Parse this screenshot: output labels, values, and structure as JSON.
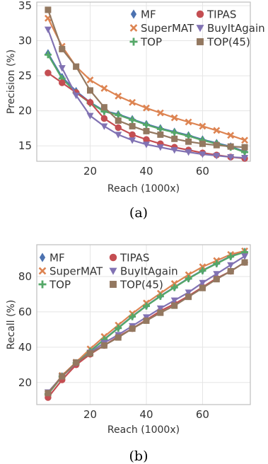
{
  "colors": {
    "MF": "#4c72b0",
    "SuperMAT": "#dd8452",
    "TOP": "#55a868",
    "TIPAS": "#c44e52",
    "BuyItAgain": "#8172b3",
    "TOP(45)": "#937860",
    "grid": "#e5e5e5",
    "axes": "#bfbfbf"
  },
  "chart_data": [
    {
      "type": "line",
      "xlabel": "Reach (1000x)",
      "ylabel": "Precision (%)",
      "caption": "(a)",
      "xlim": [
        1,
        77
      ],
      "ylim": [
        12.8,
        35.5
      ],
      "xticks": [
        20,
        40,
        60
      ],
      "yticks": [
        15,
        20,
        25,
        30,
        35
      ],
      "grid": true,
      "legend_position": "top-right",
      "x": [
        5,
        10,
        15,
        20,
        25,
        30,
        35,
        40,
        45,
        50,
        55,
        60,
        65,
        70,
        75
      ],
      "series": [
        {
          "name": "MF",
          "marker": "diamond",
          "values": [
            28.2,
            24.8,
            22.8,
            21.2,
            20.0,
            19.5,
            18.8,
            18.1,
            17.5,
            17.0,
            16.5,
            15.9,
            15.4,
            14.9,
            14.2
          ]
        },
        {
          "name": "SuperMAT",
          "marker": "x",
          "values": [
            33.2,
            29.2,
            26.3,
            24.4,
            23.2,
            22.1,
            21.2,
            20.4,
            19.7,
            19.0,
            18.4,
            17.8,
            17.2,
            16.5,
            15.8
          ]
        },
        {
          "name": "TOP",
          "marker": "plus",
          "values": [
            28.0,
            24.6,
            22.6,
            21.1,
            19.9,
            19.4,
            18.7,
            18.0,
            17.4,
            16.9,
            16.4,
            15.8,
            15.3,
            14.8,
            14.1
          ]
        },
        {
          "name": "TIPAS",
          "marker": "circle",
          "values": [
            25.4,
            24.0,
            22.6,
            21.2,
            18.9,
            17.6,
            16.6,
            15.9,
            15.3,
            14.8,
            14.4,
            14.0,
            13.7,
            13.4,
            13.2
          ]
        },
        {
          "name": "BuyItAgain",
          "marker": "triangle-down",
          "values": [
            31.6,
            26.1,
            22.2,
            19.3,
            17.8,
            16.6,
            15.8,
            15.2,
            14.8,
            14.4,
            14.1,
            13.8,
            13.6,
            13.4,
            13.3
          ]
        },
        {
          "name": "TOP(45)",
          "marker": "square",
          "values": [
            34.4,
            28.8,
            26.3,
            22.9,
            20.5,
            18.6,
            17.8,
            17.1,
            16.6,
            16.0,
            15.6,
            15.3,
            15.1,
            14.9,
            14.8
          ]
        }
      ]
    },
    {
      "type": "line",
      "xlabel": "Reach (1000x)",
      "ylabel": "Recall (%)",
      "caption": "(b)",
      "xlim": [
        1,
        77
      ],
      "ylim": [
        7.5,
        98
      ],
      "xticks": [
        20,
        40,
        60
      ],
      "yticks": [
        20,
        40,
        60,
        80
      ],
      "grid": true,
      "legend_position": "top",
      "x": [
        5,
        10,
        15,
        20,
        25,
        30,
        35,
        40,
        45,
        50,
        55,
        60,
        65,
        70,
        75
      ],
      "series": [
        {
          "name": "MF",
          "marker": "diamond",
          "values": [
            13.5,
            23.5,
            31.0,
            37.8,
            44.5,
            51.0,
            57.5,
            63.5,
            69.0,
            74.0,
            79.0,
            83.5,
            87.5,
            91.5,
            94.0
          ]
        },
        {
          "name": "SuperMAT",
          "marker": "x",
          "values": [
            13.7,
            24.0,
            31.5,
            39.0,
            46.0,
            52.5,
            59.0,
            65.0,
            70.5,
            76.0,
            81.0,
            85.5,
            89.0,
            92.5,
            94.5
          ]
        },
        {
          "name": "TOP",
          "marker": "plus",
          "values": [
            13.4,
            23.4,
            31.0,
            37.6,
            44.3,
            50.8,
            57.3,
            63.3,
            68.8,
            73.8,
            78.8,
            83.3,
            87.3,
            91.3,
            93.8
          ]
        },
        {
          "name": "TIPAS",
          "marker": "circle",
          "values": [
            11.5,
            21.5,
            30.0,
            36.0,
            41.0,
            46.0,
            50.5,
            55.5,
            60.5,
            64.5,
            69.0,
            74.0,
            79.0,
            83.0,
            88.0
          ]
        },
        {
          "name": "BuyItAgain",
          "marker": "triangle-down",
          "values": [
            14.5,
            23.5,
            31.0,
            37.0,
            42.5,
            47.0,
            52.0,
            57.0,
            62.0,
            66.5,
            71.0,
            76.5,
            81.5,
            86.5,
            91.5
          ]
        },
        {
          "name": "TOP(45)",
          "marker": "square",
          "values": [
            14.0,
            23.5,
            31.3,
            36.5,
            41.0,
            45.5,
            50.5,
            55.0,
            59.5,
            63.5,
            68.5,
            73.5,
            78.5,
            83.0,
            88.0
          ]
        }
      ]
    }
  ]
}
